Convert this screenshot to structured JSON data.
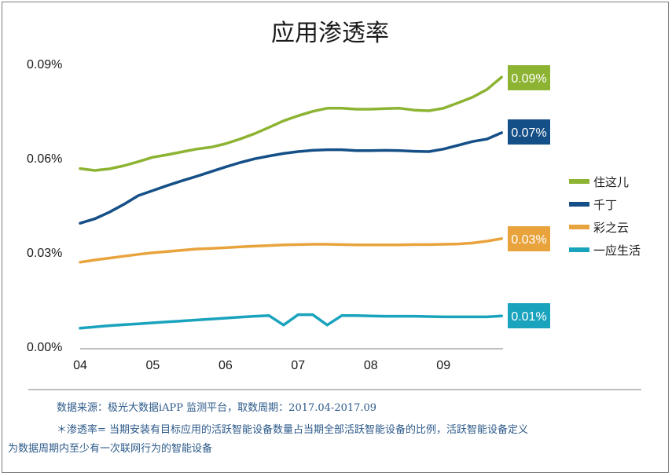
{
  "chart_data": {
    "type": "line",
    "title": "应用渗透率",
    "categories": [
      "04",
      "05",
      "06",
      "07",
      "08",
      "09"
    ],
    "x": [
      4.0,
      4.2,
      4.4,
      4.6,
      4.8,
      5.0,
      5.2,
      5.4,
      5.6,
      5.8,
      6.0,
      6.2,
      6.4,
      6.6,
      6.8,
      7.0,
      7.2,
      7.4,
      7.6,
      7.8,
      8.0,
      8.2,
      8.4,
      8.6,
      8.8,
      9.0,
      9.2,
      9.4,
      9.6,
      9.8
    ],
    "yticks": [
      "0.00%",
      "0.03%",
      "0.06%",
      "0.09%"
    ],
    "ylim": [
      0,
      0.09
    ],
    "series": [
      {
        "name": "住这儿",
        "color": "#8db333",
        "end_label": "0.09%",
        "values": [
          0.0566,
          0.056,
          0.0565,
          0.0575,
          0.0588,
          0.0602,
          0.061,
          0.0619,
          0.0628,
          0.0634,
          0.0645,
          0.066,
          0.0677,
          0.0697,
          0.0718,
          0.0734,
          0.0748,
          0.0758,
          0.0758,
          0.0755,
          0.0755,
          0.0757,
          0.0758,
          0.0752,
          0.075,
          0.0758,
          0.0775,
          0.0793,
          0.0818,
          0.0857
        ]
      },
      {
        "name": "千丁",
        "color": "#154f87",
        "end_label": "0.07%",
        "values": [
          0.0392,
          0.0406,
          0.0427,
          0.0452,
          0.048,
          0.0496,
          0.0512,
          0.0527,
          0.0541,
          0.0556,
          0.0571,
          0.0585,
          0.0597,
          0.0606,
          0.0614,
          0.062,
          0.0624,
          0.0626,
          0.0626,
          0.0623,
          0.0623,
          0.0624,
          0.0623,
          0.0621,
          0.062,
          0.0628,
          0.064,
          0.0652,
          0.066,
          0.068
        ]
      },
      {
        "name": "彩之云",
        "color": "#e8a33d",
        "end_label": "0.03%",
        "values": [
          0.0268,
          0.0275,
          0.0281,
          0.0287,
          0.0293,
          0.0298,
          0.0302,
          0.0306,
          0.031,
          0.0312,
          0.0314,
          0.0317,
          0.0319,
          0.0321,
          0.0323,
          0.0324,
          0.0325,
          0.0325,
          0.0324,
          0.0323,
          0.0323,
          0.0323,
          0.0323,
          0.0324,
          0.0324,
          0.0325,
          0.0326,
          0.0329,
          0.0335,
          0.0343
        ]
      },
      {
        "name": "一应生活",
        "color": "#1aa3bd",
        "end_label": "0.01%",
        "values": [
          0.0058,
          0.0062,
          0.0066,
          0.0069,
          0.0072,
          0.0075,
          0.0078,
          0.0081,
          0.0084,
          0.0087,
          0.009,
          0.0093,
          0.0096,
          0.0098,
          0.0068,
          0.0101,
          0.0101,
          0.0068,
          0.0098,
          0.0098,
          0.0097,
          0.0096,
          0.0096,
          0.0096,
          0.0095,
          0.0094,
          0.0094,
          0.0094,
          0.0094,
          0.0097
        ]
      }
    ]
  },
  "footnote": {
    "source": "数据来源：极光大数据iAPP 监测平台，取数周期：2017.04-2017.09",
    "definition_line1": "＊渗透率= 当期安装有目标应用的活跃智能设备数量占当期全部活跃智能设备的比例，活跃智能设备定义",
    "definition_line2": "为数据周期内至少有一次联网行为的智能设备"
  }
}
